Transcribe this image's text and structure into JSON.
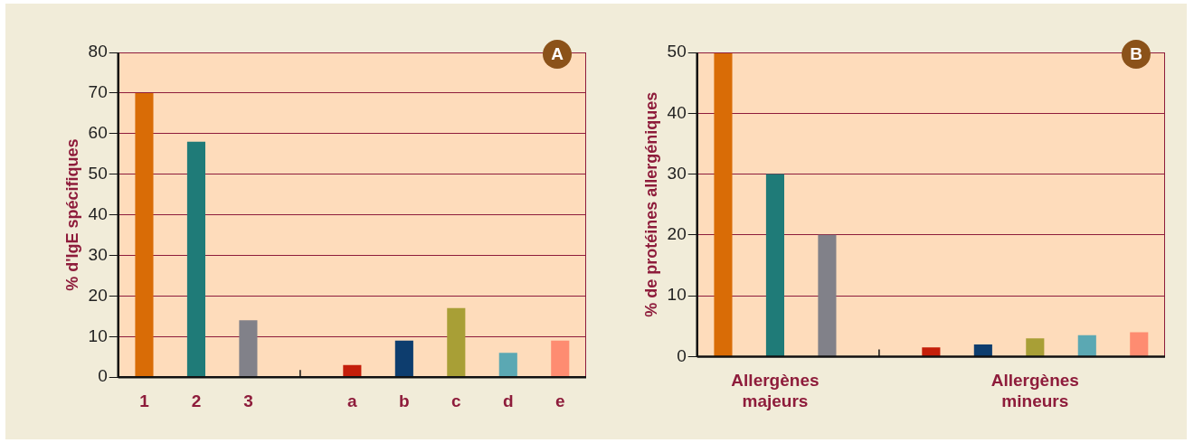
{
  "chart_data": [
    {
      "type": "bar",
      "ylabel": "% d'IgE spécifiques",
      "categories": [
        "1",
        "2",
        "3",
        null,
        "a",
        "b",
        "c",
        "d",
        "e"
      ],
      "values": [
        70,
        58,
        14,
        null,
        3,
        9,
        17,
        6,
        9
      ],
      "colors": [
        "#d96c06",
        "#1f7b78",
        "#818189",
        "#ffffff",
        "#c41e0a",
        "#0d3d6e",
        "#a89f36",
        "#5ba8b3",
        "#fe8c71"
      ],
      "ylim": [
        0,
        80
      ],
      "yticks": [
        0,
        10,
        20,
        30,
        40,
        50,
        60,
        70,
        80
      ],
      "grid": "y",
      "annotations": [
        "A"
      ]
    },
    {
      "type": "bar",
      "ylabel": "% de protéines allergéniques",
      "categories": [
        null,
        "Allergènes majeurs",
        null,
        null,
        null,
        null,
        "Allergènes mineurs",
        null,
        null
      ],
      "values": [
        50,
        30,
        20,
        null,
        1.5,
        2,
        3,
        3.5,
        4
      ],
      "colors": [
        "#d96c06",
        "#1f7b78",
        "#818189",
        "#ffffff",
        "#c41e0a",
        "#0d3d6e",
        "#a89f36",
        "#5ba8b3",
        "#fe8c71"
      ],
      "ylim": [
        0,
        50
      ],
      "yticks": [
        0,
        10,
        20,
        30,
        40,
        50
      ],
      "grid": "y",
      "annotations": [
        "B"
      ]
    }
  ]
}
